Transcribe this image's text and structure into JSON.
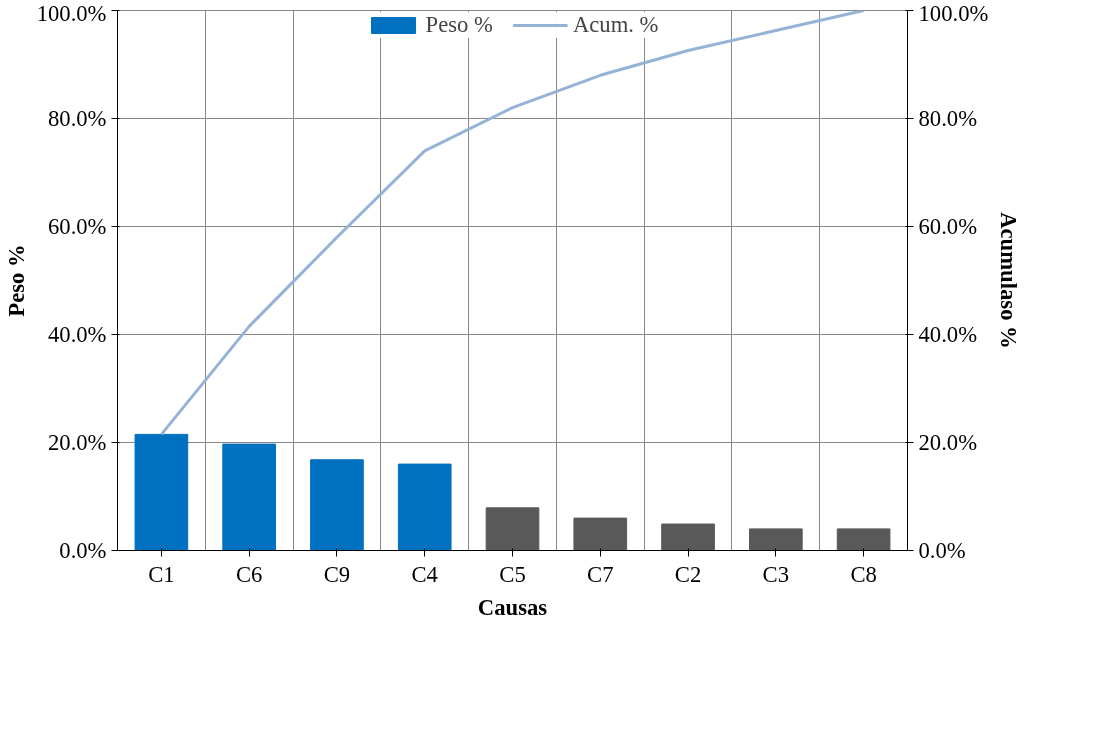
{
  "chart_data": {
    "type": "bar",
    "xlabel": "Causas",
    "ylabel": "Peso %",
    "y2label": "Acumulaso %",
    "categories": [
      "C1",
      "C6",
      "C9",
      "C4",
      "C5",
      "C7",
      "C2",
      "C3",
      "C8"
    ],
    "series": [
      {
        "name": "Peso %",
        "colors": [
          "#0070c0",
          "#0070c0",
          "#0070c0",
          "#0070c0",
          "#595959",
          "#595959",
          "#595959",
          "#595959",
          "#595959"
        ],
        "values": [
          21.5,
          19.7,
          16.8,
          16.0,
          7.9,
          6.0,
          4.9,
          4.0,
          4.0
        ]
      },
      {
        "name": "Acum. %",
        "type": "line",
        "axis": "y2",
        "color": "#95b3d7",
        "values": [
          21.5,
          41.5,
          58.0,
          74.0,
          82.0,
          88.0,
          92.6,
          96.3,
          100.0
        ]
      }
    ],
    "ylim": [
      0,
      100
    ],
    "yticks": [
      {
        "value": 0,
        "label": "0.0%"
      },
      {
        "value": 20,
        "label": "20.0%"
      },
      {
        "value": 40,
        "label": "40.0%"
      },
      {
        "value": 60,
        "label": "60.0%"
      },
      {
        "value": 80,
        "label": "80.0%"
      },
      {
        "value": 100,
        "label": "100.0%"
      }
    ],
    "y2lim": [
      0,
      100
    ],
    "y2ticks": [
      {
        "value": 0,
        "label": "0.0%"
      },
      {
        "value": 20,
        "label": "20.0%"
      },
      {
        "value": 40,
        "label": "40.0%"
      },
      {
        "value": 60,
        "label": "60.0%"
      },
      {
        "value": 80,
        "label": "80.0%"
      },
      {
        "value": 100,
        "label": "100.0%"
      }
    ],
    "grid": true,
    "legend": "top"
  }
}
